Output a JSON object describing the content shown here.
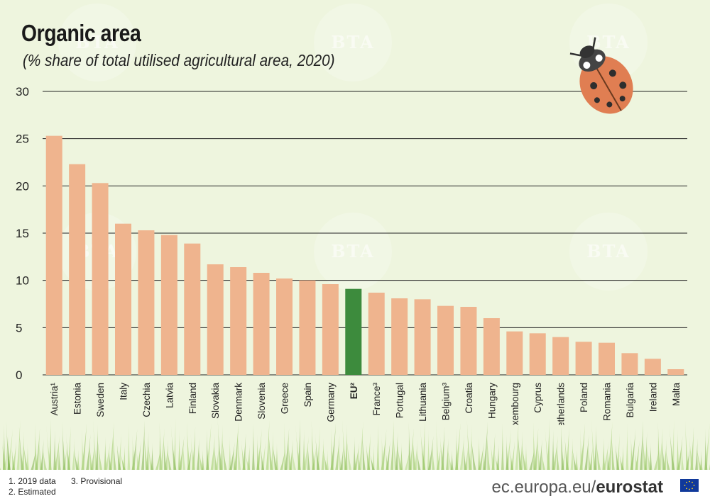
{
  "title": "Organic area",
  "subtitle": "(% share of total utilised agricultural area, 2020)",
  "footnotes": [
    "1. 2019 data",
    "2. Estimated",
    "3. Provisional"
  ],
  "brand": {
    "url": "ec.europa.eu/",
    "name": "eurostat"
  },
  "watermark": "BTA",
  "colors": {
    "bar": "#efb48e",
    "highlight": "#3d8b3d",
    "grid": "#222222",
    "background": "#eef5de",
    "grass": "#8fbf5a"
  },
  "chart_data": {
    "type": "bar",
    "title": "Organic area",
    "subtitle": "(% share of total utilised agricultural area, 2020)",
    "xlabel": "",
    "ylabel": "",
    "ylim": [
      0,
      30
    ],
    "yticks": [
      0,
      5,
      10,
      15,
      20,
      25,
      30
    ],
    "grid": true,
    "categories": [
      "Austria¹",
      "Estonia",
      "Sweden",
      "Italy",
      "Czechia",
      "Latvia",
      "Finland",
      "Slovakia",
      "Denmark",
      "Slovenia",
      "Greece",
      "Spain",
      "Germany",
      "EU²",
      "France³",
      "Portugal",
      "Lithuania",
      "Belgium³",
      "Croatia",
      "Hungary",
      "Luxembourg",
      "Cyprus",
      "Netherlands",
      "Poland",
      "Romania",
      "Bulgaria",
      "Ireland",
      "Malta"
    ],
    "values": [
      25.3,
      22.3,
      20.3,
      16.0,
      15.3,
      14.8,
      13.9,
      11.7,
      11.4,
      10.8,
      10.2,
      10.0,
      9.6,
      9.1,
      8.7,
      8.1,
      8.0,
      7.3,
      7.2,
      6.0,
      4.6,
      4.4,
      4.0,
      3.5,
      3.4,
      2.3,
      1.7,
      0.6
    ],
    "highlight": "EU²"
  }
}
